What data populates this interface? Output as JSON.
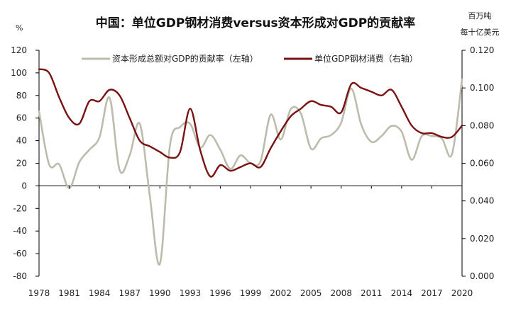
{
  "chart_data": {
    "type": "line",
    "title": "中国：单位GDP钢材消费versus资本形成对GDP的贡献率",
    "left_unit": "%",
    "right_unit_line1": "百万吨",
    "right_unit_line2": "每十亿美元",
    "x_tick_labels": [
      "1978",
      "1981",
      "1984",
      "1987",
      "1990",
      "1993",
      "1996",
      "1999",
      "2002",
      "2005",
      "2008",
      "2011",
      "2014",
      "2017",
      "2020"
    ],
    "left_axis": {
      "min": -80,
      "max": 120,
      "ticks": [
        120,
        100,
        80,
        60,
        40,
        20,
        0,
        -20,
        -40,
        -60,
        -80
      ],
      "tick_labels": [
        "120",
        "100",
        "80",
        "60",
        "40",
        "20",
        "0",
        "-20",
        "-40",
        "-60",
        "-80"
      ]
    },
    "right_axis": {
      "min": 0.0,
      "max": 0.12,
      "ticks": [
        0.12,
        0.1,
        0.08,
        0.06,
        0.04,
        0.02,
        0.0
      ],
      "tick_labels": [
        "0.120",
        "0.100",
        "0.080",
        "0.060",
        "0.040",
        "0.020",
        "0.000"
      ]
    },
    "legend_position": "top",
    "series": [
      {
        "name": "资本形成总额对GDP的贡献率（左轴）",
        "axis": "left",
        "color": "#bdbbac",
        "x": [
          1978,
          1979,
          1980,
          1981,
          1982,
          1983,
          1984,
          1985,
          1986,
          1987,
          1988,
          1989,
          1990,
          1991,
          1992,
          1993,
          1994,
          1995,
          1996,
          1997,
          1998,
          1999,
          2000,
          2001,
          2002,
          2003,
          2004,
          2005,
          2006,
          2007,
          2008,
          2009,
          2010,
          2011,
          2012,
          2013,
          2014,
          2015,
          2016,
          2017,
          2018,
          2019,
          2020
        ],
        "values": [
          66,
          19,
          19,
          -2,
          21,
          32,
          43,
          78,
          14,
          27,
          55,
          -9,
          -69,
          36,
          52,
          55,
          34,
          45,
          32,
          15,
          27,
          20,
          22,
          63,
          41,
          68,
          64,
          33,
          42,
          45,
          56,
          86,
          54,
          39,
          44,
          53,
          48,
          23,
          44,
          44,
          42,
          28,
          94
        ]
      },
      {
        "name": "单位GDP钢材消费（右轴）",
        "axis": "right",
        "color": "#7a1212",
        "x": [
          1978,
          1979,
          1980,
          1981,
          1982,
          1983,
          1984,
          1985,
          1986,
          1987,
          1988,
          1989,
          1990,
          1991,
          1992,
          1993,
          1994,
          1995,
          1996,
          1997,
          1998,
          1999,
          2000,
          2001,
          2002,
          2003,
          2004,
          2005,
          2006,
          2007,
          2008,
          2009,
          2010,
          2011,
          2012,
          2013,
          2014,
          2015,
          2016,
          2017,
          2018,
          2019,
          2020
        ],
        "values": [
          0.11,
          0.108,
          0.095,
          0.084,
          0.081,
          0.093,
          0.093,
          0.099,
          0.096,
          0.084,
          0.072,
          0.069,
          0.066,
          0.063,
          0.066,
          0.089,
          0.067,
          0.053,
          0.059,
          0.056,
          0.058,
          0.06,
          0.058,
          0.068,
          0.077,
          0.085,
          0.089,
          0.093,
          0.091,
          0.09,
          0.087,
          0.102,
          0.1,
          0.098,
          0.096,
          0.099,
          0.09,
          0.08,
          0.076,
          0.076,
          0.074,
          0.074,
          0.08
        ]
      }
    ]
  }
}
